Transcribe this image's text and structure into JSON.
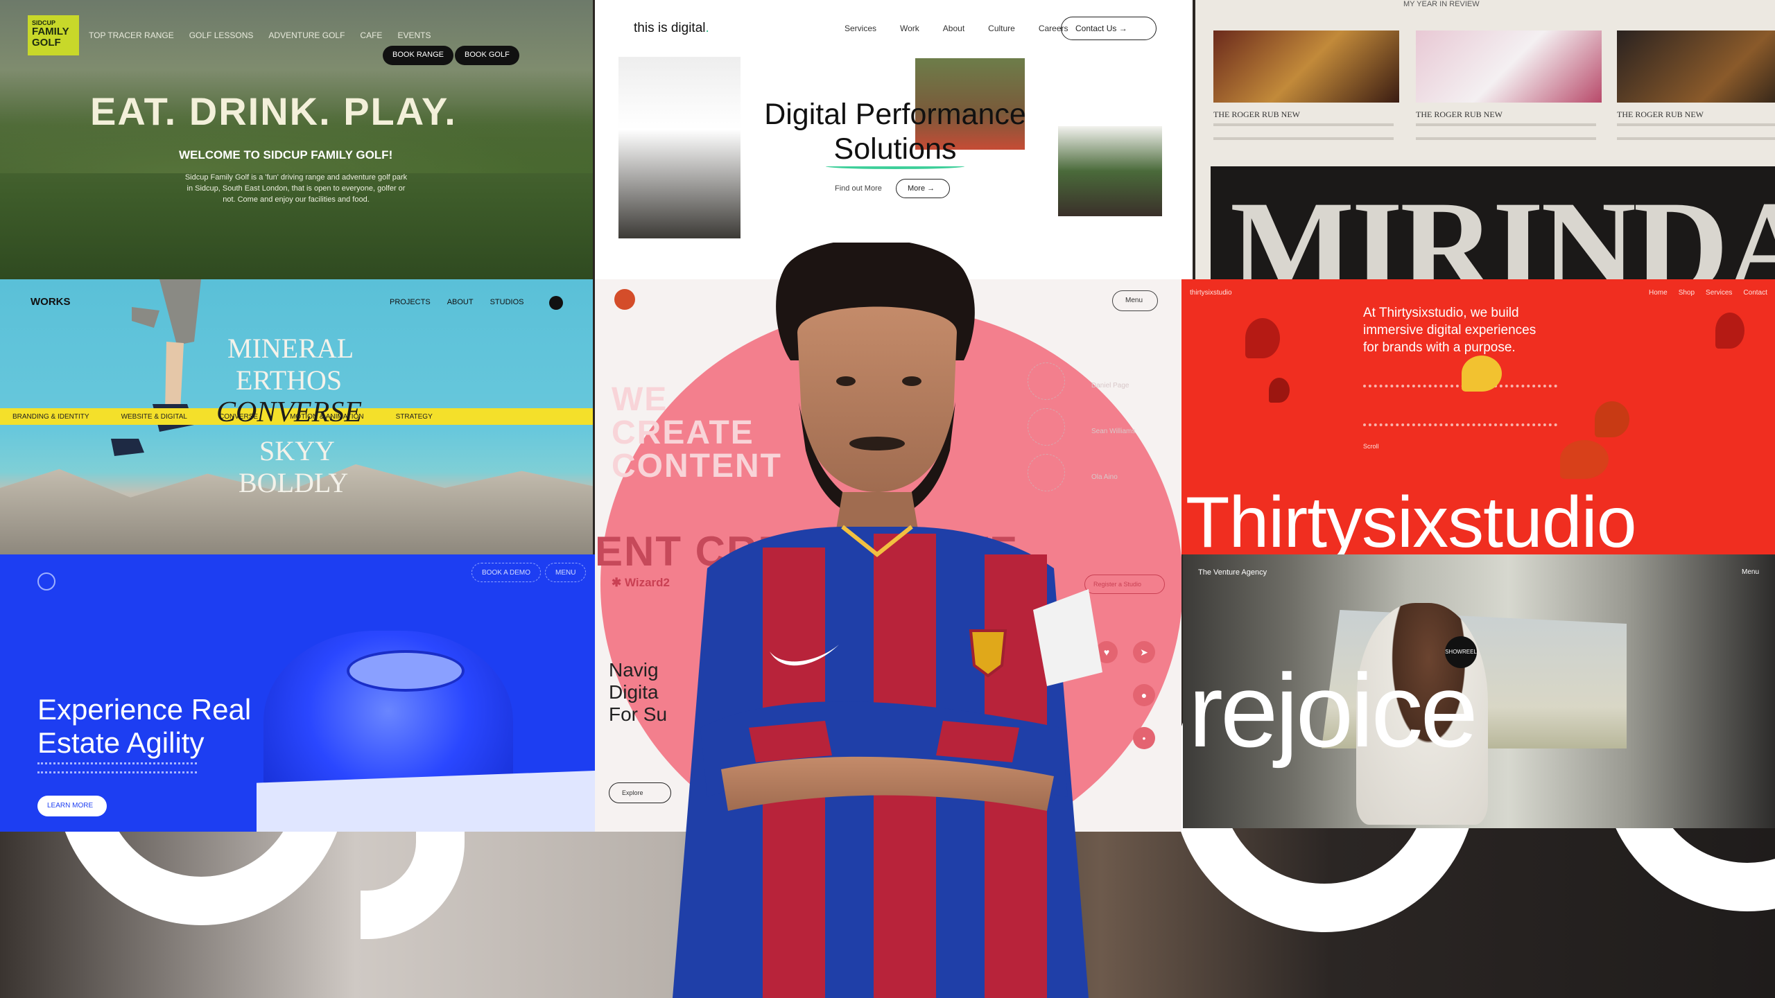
{
  "golf": {
    "logo_top": "SIDCUP",
    "logo_line1": "FAMILY",
    "logo_line2": "GOLF",
    "nav": [
      "TOP TRACER RANGE",
      "GOLF LESSONS",
      "ADVENTURE GOLF",
      "CAFE",
      "EVENTS"
    ],
    "btn_book_range": "BOOK RANGE",
    "btn_book_golf": "BOOK GOLF",
    "headline": "EAT. DRINK. PLAY.",
    "subheadline": "WELCOME TO SIDCUP FAMILY GOLF!",
    "body": "Sidcup Family Golf is a 'fun' driving range and adventure golf park in Sidcup, South East London, that is open to everyone, golfer or not. Come and enjoy our facilities and food."
  },
  "digital": {
    "logo": "this is digital",
    "logo_dot": ".",
    "nav": [
      "Services",
      "Work",
      "About",
      "Culture",
      "Careers"
    ],
    "contact": "Contact Us →",
    "headline_line1": "Digital Performance",
    "headline_line2": "Solutions",
    "small": "Find out More",
    "more": "More →"
  },
  "mirinda": {
    "top": "MY YEAR IN REVIEW",
    "card_title": "THE ROGER RUB NEW",
    "word": "MIRINDA"
  },
  "works": {
    "logo": "WORKS",
    "nav": [
      "PROJECTS",
      "ABOUT",
      "STUDIOS"
    ],
    "band": [
      "BRANDING & IDENTITY",
      "WEBSITE & DIGITAL",
      "CONVERSE",
      "MOTION & ANIMATION",
      "STRATEGY"
    ],
    "word1": "MINERAL",
    "word2": "ERTHOS",
    "word3": "CONVERSE",
    "word4": "SKYY",
    "word5": "BOLDLY"
  },
  "center": {
    "menu": "Menu",
    "create": [
      "WE",
      "CREATE",
      "CONTENT"
    ],
    "strip": "ENT CREATORS WE",
    "wizard": "✱ Wizard2",
    "side": "Register a Studio",
    "navig": [
      "Navig",
      "Digita",
      "For Su"
    ],
    "nav_btn": "Explore",
    "names": [
      "Daniel Page",
      "Sean Williams",
      "Ola Aino"
    ],
    "icons": [
      "♥",
      "➤",
      "●",
      "•"
    ]
  },
  "thirty": {
    "logo": "thirtysixstudio",
    "nav": [
      "Home",
      "Shop",
      "Services",
      "Contact"
    ],
    "lead": "At Thirtysixstudio, we build immersive digital experiences for brands with a purpose.",
    "send": "Scroll",
    "big": "Thirtysixstudio"
  },
  "blue": {
    "btn_demo": "BOOK A DEMO",
    "btn_menu": "MENU",
    "headline_line1": "Experience Real",
    "headline_line2": "Estate Agility",
    "learn": "LEARN MORE"
  },
  "rejoice": {
    "agency": "The Venture Agency",
    "menu": "Menu",
    "word": "rejoice",
    "dot": "SHOWREEL"
  },
  "colors": {
    "golf_accent": "#c8d82a",
    "digital_accent": "#3ecf9a",
    "blue_bg": "#1d3ef2",
    "red_bg": "#f02e20",
    "pink_circle": "#f27584",
    "jersey_blue": "#1f3fa8",
    "jersey_red": "#b8233a"
  }
}
